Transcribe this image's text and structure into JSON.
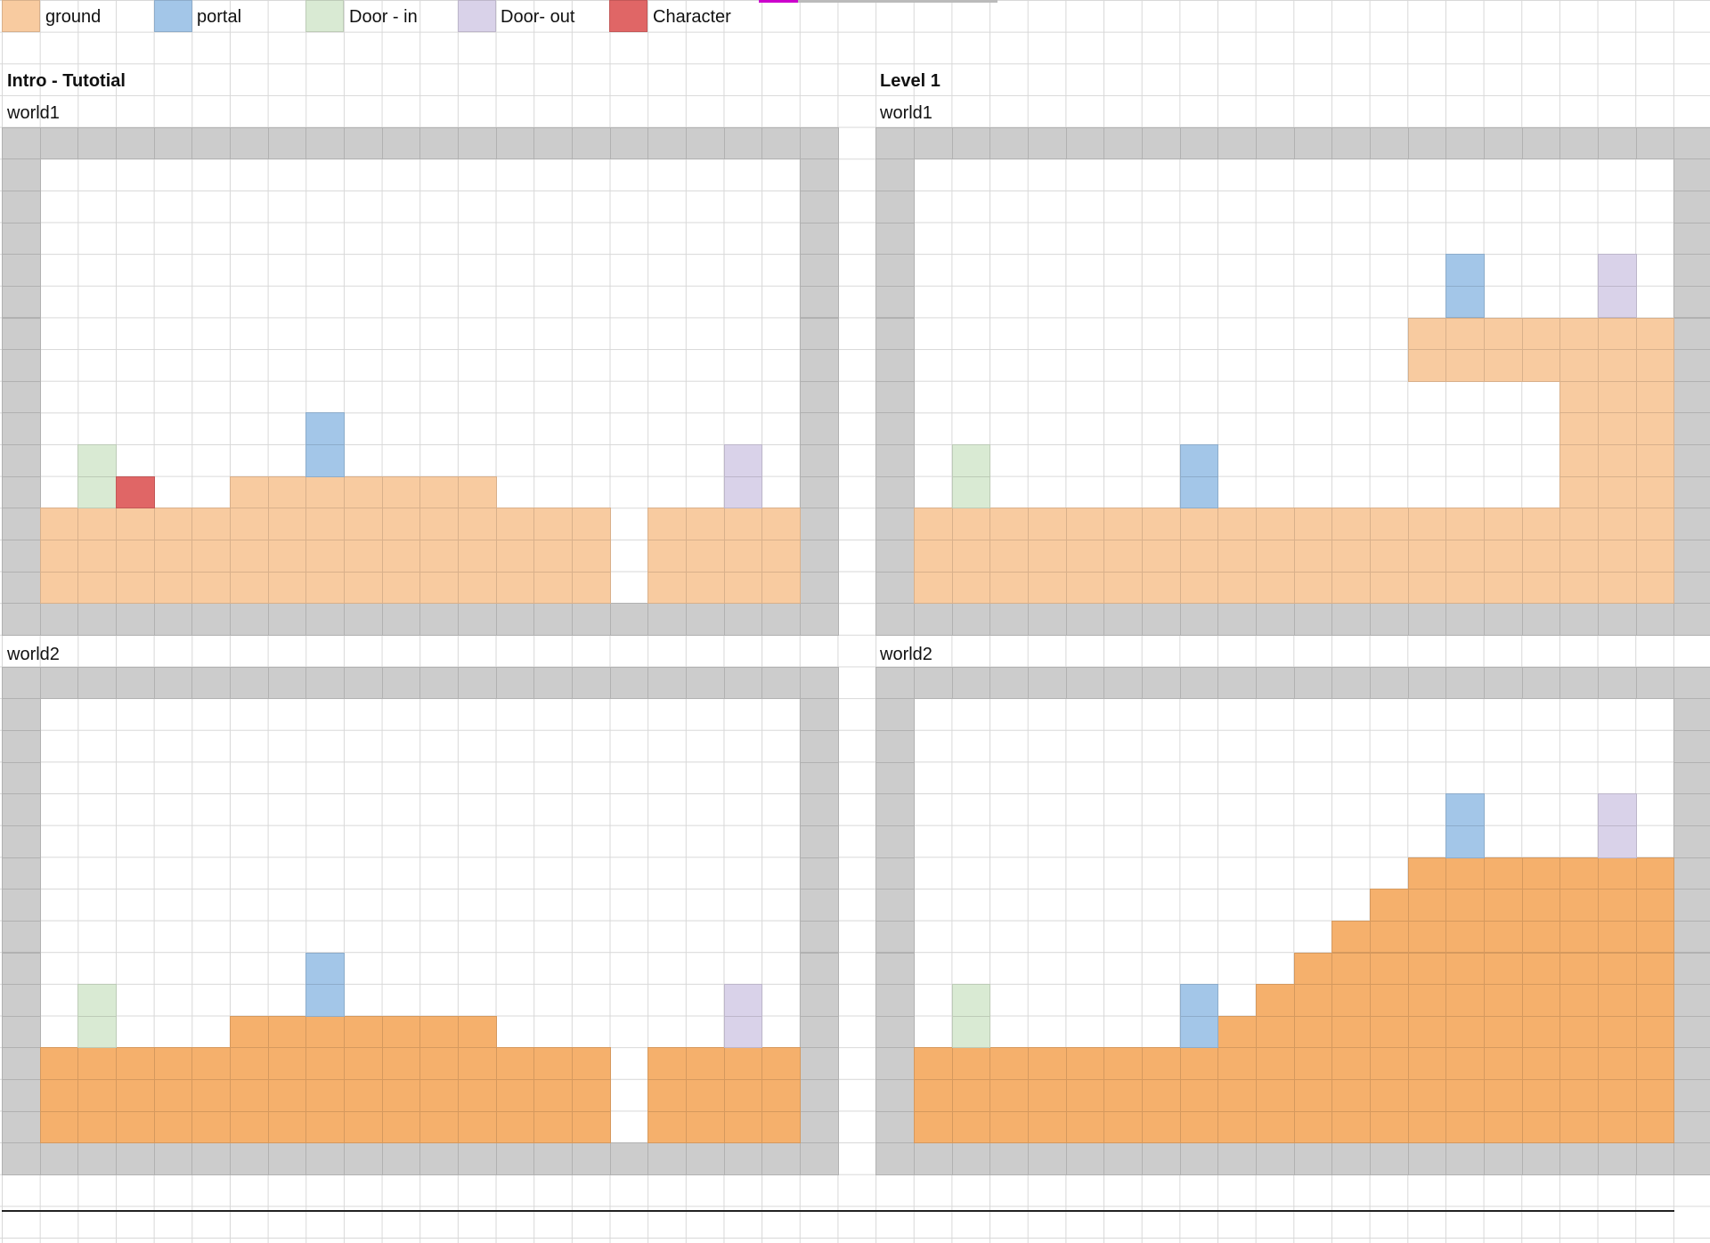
{
  "legend": [
    {
      "key": "ground",
      "label": "ground",
      "color": "#f8cba0"
    },
    {
      "key": "portal",
      "label": "portal",
      "color": "#a3c6e8"
    },
    {
      "key": "door-in",
      "label": "Door - in",
      "color": "#d9ead3"
    },
    {
      "key": "door-out",
      "label": "Door- out",
      "color": "#d9d2e9"
    },
    {
      "key": "character",
      "label": "Character",
      "color": "#e06666"
    }
  ],
  "colors": {
    "wall": "#cccccc",
    "ground": "#f8cba0",
    "ground_dark": "#f5b06c",
    "portal": "#a3c6e8",
    "door_in": "#d9ead3",
    "door_out": "#d9d2e9",
    "character": "#e06666"
  },
  "sections": [
    {
      "title": "Intro - Tutotial",
      "worlds": [
        {
          "label": "world1"
        },
        {
          "label": "world2"
        }
      ]
    },
    {
      "title": "Level 1",
      "worlds": [
        {
          "label": "world1"
        },
        {
          "label": "world2"
        }
      ]
    }
  ]
}
